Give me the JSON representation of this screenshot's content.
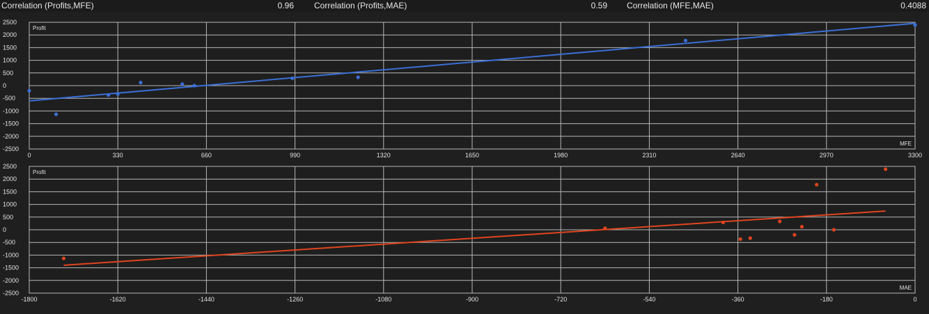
{
  "header": {
    "items": [
      {
        "label": "Correlation (Profits,MFE)",
        "value": "0.96"
      },
      {
        "label": "Correlation (Profits,MAE)",
        "value": "0.59"
      },
      {
        "label": "Correlation (MFE,MAE)",
        "value": "0.4088"
      }
    ]
  },
  "colors": {
    "mfe_series": "#3b6fd6",
    "mae_series": "#e0451e"
  },
  "chart_data": [
    {
      "type": "scatter",
      "ylabel": "Profit",
      "xlabel": "MFE",
      "xlim": [
        0,
        3300
      ],
      "ylim": [
        -2500,
        2500
      ],
      "xticks": [
        0,
        330,
        660,
        990,
        1320,
        1650,
        1980,
        2310,
        2640,
        2970,
        3300
      ],
      "yticks": [
        2500,
        2000,
        1500,
        1000,
        500,
        0,
        -500,
        -1000,
        -1500,
        -2000,
        -2500
      ],
      "grid": true,
      "points": [
        {
          "x": 0,
          "y": -200
        },
        {
          "x": 100,
          "y": -1130
        },
        {
          "x": 295,
          "y": -370
        },
        {
          "x": 330,
          "y": -330
        },
        {
          "x": 415,
          "y": 120
        },
        {
          "x": 570,
          "y": 60
        },
        {
          "x": 615,
          "y": 0
        },
        {
          "x": 980,
          "y": 290
        },
        {
          "x": 1225,
          "y": 330
        },
        {
          "x": 2445,
          "y": 1780
        },
        {
          "x": 3300,
          "y": 2390
        }
      ],
      "trendline": {
        "x": [
          0,
          3300
        ],
        "y": [
          -600,
          2460
        ]
      }
    },
    {
      "type": "scatter",
      "ylabel": "Profit",
      "xlabel": "MAE",
      "xlim": [
        -1800,
        0
      ],
      "ylim": [
        -2500,
        2500
      ],
      "xticks": [
        -1800,
        -1620,
        -1440,
        -1260,
        -1080,
        -900,
        -720,
        -540,
        -360,
        -180,
        0
      ],
      "yticks": [
        2500,
        2000,
        1500,
        1000,
        500,
        0,
        -500,
        -1000,
        -1500,
        -2000,
        -2500
      ],
      "grid": true,
      "points": [
        {
          "x": -1730,
          "y": -1130
        },
        {
          "x": -630,
          "y": 60
        },
        {
          "x": -390,
          "y": 290
        },
        {
          "x": -355,
          "y": -370
        },
        {
          "x": -335,
          "y": -330
        },
        {
          "x": -275,
          "y": 330
        },
        {
          "x": -245,
          "y": -200
        },
        {
          "x": -230,
          "y": 120
        },
        {
          "x": -200,
          "y": 1780
        },
        {
          "x": -165,
          "y": 0
        },
        {
          "x": -60,
          "y": 2390
        }
      ],
      "trendline": {
        "x": [
          -1730,
          -60
        ],
        "y": [
          -1400,
          740
        ]
      }
    }
  ]
}
